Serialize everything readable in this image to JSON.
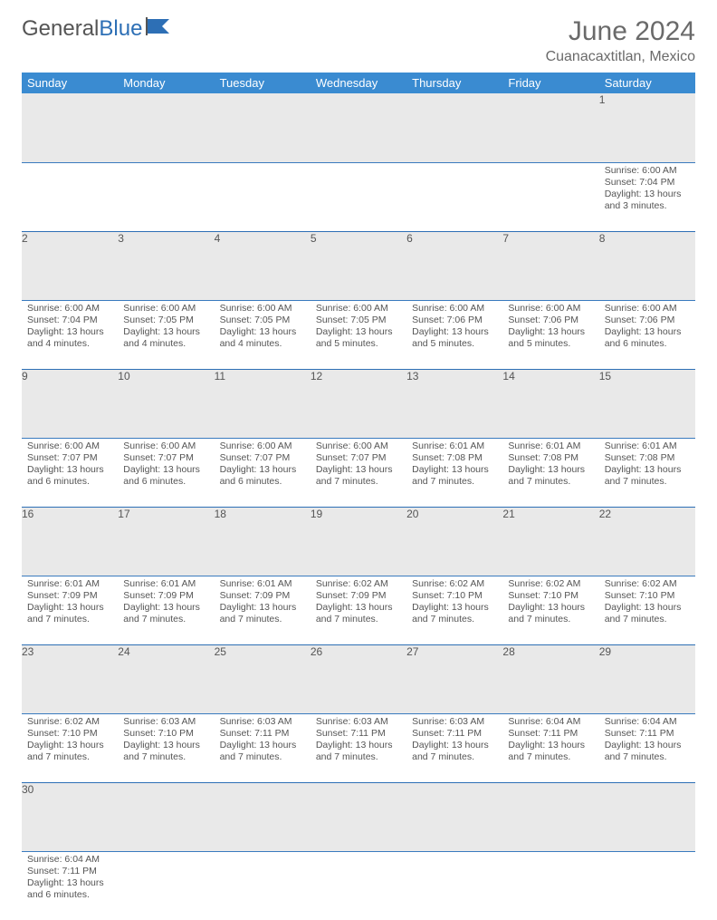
{
  "logo": {
    "part1": "General",
    "part2": "Blue"
  },
  "title": "June 2024",
  "location": "Cuanacaxtitlan, Mexico",
  "day_headers": [
    "Sunday",
    "Monday",
    "Tuesday",
    "Wednesday",
    "Thursday",
    "Friday",
    "Saturday"
  ],
  "colors": {
    "header_bg": "#3a8bd1",
    "header_text": "#ffffff",
    "daynum_bg": "#e9e9e9",
    "row_border": "#2d6fb5",
    "text": "#555555",
    "logo_blue": "#2d6fb5"
  },
  "weeks": [
    [
      null,
      null,
      null,
      null,
      null,
      null,
      {
        "n": "1",
        "sr": "Sunrise: 6:00 AM",
        "ss": "Sunset: 7:04 PM",
        "dl": "Daylight: 13 hours and 3 minutes."
      }
    ],
    [
      {
        "n": "2",
        "sr": "Sunrise: 6:00 AM",
        "ss": "Sunset: 7:04 PM",
        "dl": "Daylight: 13 hours and 4 minutes."
      },
      {
        "n": "3",
        "sr": "Sunrise: 6:00 AM",
        "ss": "Sunset: 7:05 PM",
        "dl": "Daylight: 13 hours and 4 minutes."
      },
      {
        "n": "4",
        "sr": "Sunrise: 6:00 AM",
        "ss": "Sunset: 7:05 PM",
        "dl": "Daylight: 13 hours and 4 minutes."
      },
      {
        "n": "5",
        "sr": "Sunrise: 6:00 AM",
        "ss": "Sunset: 7:05 PM",
        "dl": "Daylight: 13 hours and 5 minutes."
      },
      {
        "n": "6",
        "sr": "Sunrise: 6:00 AM",
        "ss": "Sunset: 7:06 PM",
        "dl": "Daylight: 13 hours and 5 minutes."
      },
      {
        "n": "7",
        "sr": "Sunrise: 6:00 AM",
        "ss": "Sunset: 7:06 PM",
        "dl": "Daylight: 13 hours and 5 minutes."
      },
      {
        "n": "8",
        "sr": "Sunrise: 6:00 AM",
        "ss": "Sunset: 7:06 PM",
        "dl": "Daylight: 13 hours and 6 minutes."
      }
    ],
    [
      {
        "n": "9",
        "sr": "Sunrise: 6:00 AM",
        "ss": "Sunset: 7:07 PM",
        "dl": "Daylight: 13 hours and 6 minutes."
      },
      {
        "n": "10",
        "sr": "Sunrise: 6:00 AM",
        "ss": "Sunset: 7:07 PM",
        "dl": "Daylight: 13 hours and 6 minutes."
      },
      {
        "n": "11",
        "sr": "Sunrise: 6:00 AM",
        "ss": "Sunset: 7:07 PM",
        "dl": "Daylight: 13 hours and 6 minutes."
      },
      {
        "n": "12",
        "sr": "Sunrise: 6:00 AM",
        "ss": "Sunset: 7:07 PM",
        "dl": "Daylight: 13 hours and 7 minutes."
      },
      {
        "n": "13",
        "sr": "Sunrise: 6:01 AM",
        "ss": "Sunset: 7:08 PM",
        "dl": "Daylight: 13 hours and 7 minutes."
      },
      {
        "n": "14",
        "sr": "Sunrise: 6:01 AM",
        "ss": "Sunset: 7:08 PM",
        "dl": "Daylight: 13 hours and 7 minutes."
      },
      {
        "n": "15",
        "sr": "Sunrise: 6:01 AM",
        "ss": "Sunset: 7:08 PM",
        "dl": "Daylight: 13 hours and 7 minutes."
      }
    ],
    [
      {
        "n": "16",
        "sr": "Sunrise: 6:01 AM",
        "ss": "Sunset: 7:09 PM",
        "dl": "Daylight: 13 hours and 7 minutes."
      },
      {
        "n": "17",
        "sr": "Sunrise: 6:01 AM",
        "ss": "Sunset: 7:09 PM",
        "dl": "Daylight: 13 hours and 7 minutes."
      },
      {
        "n": "18",
        "sr": "Sunrise: 6:01 AM",
        "ss": "Sunset: 7:09 PM",
        "dl": "Daylight: 13 hours and 7 minutes."
      },
      {
        "n": "19",
        "sr": "Sunrise: 6:02 AM",
        "ss": "Sunset: 7:09 PM",
        "dl": "Daylight: 13 hours and 7 minutes."
      },
      {
        "n": "20",
        "sr": "Sunrise: 6:02 AM",
        "ss": "Sunset: 7:10 PM",
        "dl": "Daylight: 13 hours and 7 minutes."
      },
      {
        "n": "21",
        "sr": "Sunrise: 6:02 AM",
        "ss": "Sunset: 7:10 PM",
        "dl": "Daylight: 13 hours and 7 minutes."
      },
      {
        "n": "22",
        "sr": "Sunrise: 6:02 AM",
        "ss": "Sunset: 7:10 PM",
        "dl": "Daylight: 13 hours and 7 minutes."
      }
    ],
    [
      {
        "n": "23",
        "sr": "Sunrise: 6:02 AM",
        "ss": "Sunset: 7:10 PM",
        "dl": "Daylight: 13 hours and 7 minutes."
      },
      {
        "n": "24",
        "sr": "Sunrise: 6:03 AM",
        "ss": "Sunset: 7:10 PM",
        "dl": "Daylight: 13 hours and 7 minutes."
      },
      {
        "n": "25",
        "sr": "Sunrise: 6:03 AM",
        "ss": "Sunset: 7:11 PM",
        "dl": "Daylight: 13 hours and 7 minutes."
      },
      {
        "n": "26",
        "sr": "Sunrise: 6:03 AM",
        "ss": "Sunset: 7:11 PM",
        "dl": "Daylight: 13 hours and 7 minutes."
      },
      {
        "n": "27",
        "sr": "Sunrise: 6:03 AM",
        "ss": "Sunset: 7:11 PM",
        "dl": "Daylight: 13 hours and 7 minutes."
      },
      {
        "n": "28",
        "sr": "Sunrise: 6:04 AM",
        "ss": "Sunset: 7:11 PM",
        "dl": "Daylight: 13 hours and 7 minutes."
      },
      {
        "n": "29",
        "sr": "Sunrise: 6:04 AM",
        "ss": "Sunset: 7:11 PM",
        "dl": "Daylight: 13 hours and 7 minutes."
      }
    ],
    [
      {
        "n": "30",
        "sr": "Sunrise: 6:04 AM",
        "ss": "Sunset: 7:11 PM",
        "dl": "Daylight: 13 hours and 6 minutes."
      },
      null,
      null,
      null,
      null,
      null,
      null
    ]
  ]
}
